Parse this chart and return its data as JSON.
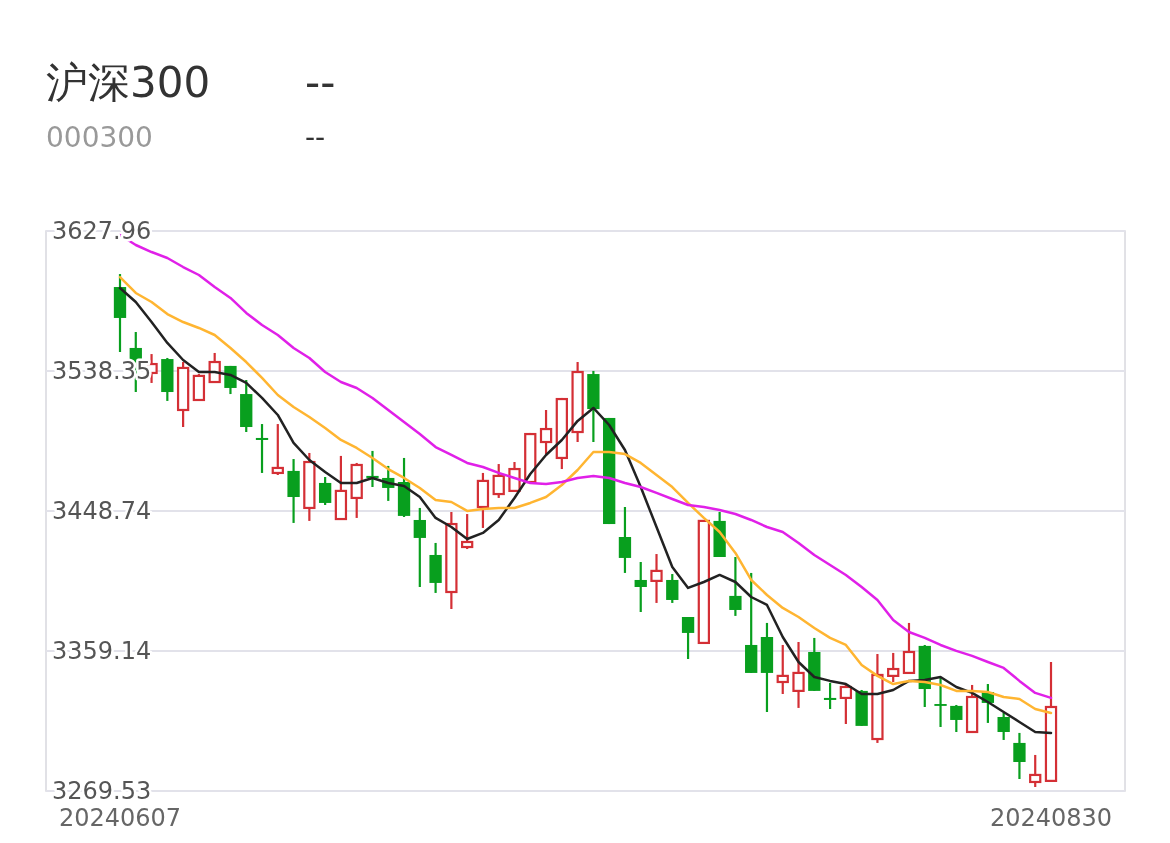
{
  "chart_data": {
    "type": "candlestick",
    "title": "沪深300",
    "subtitle": "000300",
    "annotations": [
      "--",
      "--"
    ],
    "categories": [
      "20240607",
      null,
      null,
      null,
      null,
      null,
      null,
      null,
      null,
      null,
      null,
      null,
      null,
      null,
      null,
      null,
      null,
      null,
      null,
      null,
      null,
      null,
      null,
      null,
      null,
      null,
      null,
      null,
      null,
      null,
      null,
      null,
      null,
      null,
      null,
      null,
      null,
      null,
      null,
      null,
      null,
      null,
      null,
      null,
      null,
      null,
      null,
      null,
      null,
      null,
      null,
      null,
      null,
      null,
      null,
      null,
      null,
      null,
      null,
      "20240830"
    ],
    "ylim": [
      3269.53,
      3627.96
    ],
    "yticks": [
      3269.53,
      3359.14,
      3448.74,
      3538.35,
      3627.96
    ],
    "grid": "y",
    "ohlc": [
      [
        3592.1,
        3600.4,
        3550.5,
        3572.3
      ],
      [
        3553.1,
        3563.3,
        3524.9,
        3541.6
      ],
      [
        3537.1,
        3549.2,
        3530.7,
        3542.8
      ],
      [
        3546.0,
        3546.7,
        3519.2,
        3524.9
      ],
      [
        3513.4,
        3544.1,
        3502.5,
        3540.3
      ],
      [
        3519.8,
        3536.4,
        3519.8,
        3535.2
      ],
      [
        3531.3,
        3549.9,
        3531.3,
        3544.1
      ],
      [
        3541.6,
        3541.6,
        3523.6,
        3527.5
      ],
      [
        3523.6,
        3532.6,
        3499.3,
        3502.5
      ],
      [
        3495.5,
        3504.4,
        3473.1,
        3494.2
      ],
      [
        3473.1,
        3504.4,
        3471.8,
        3476.3
      ],
      [
        3474.4,
        3482.0,
        3441.1,
        3457.7
      ],
      [
        3450.7,
        3485.9,
        3442.4,
        3480.1
      ],
      [
        3466.7,
        3470.5,
        3452.6,
        3453.9
      ],
      [
        3443.6,
        3484.0,
        3443.6,
        3461.6
      ],
      [
        3457.1,
        3479.5,
        3444.3,
        3478.2
      ],
      [
        3471.2,
        3487.2,
        3464.1,
        3469.9
      ],
      [
        3469.9,
        3477.6,
        3455.2,
        3463.5
      ],
      [
        3467.3,
        3482.7,
        3444.9,
        3445.6
      ],
      [
        3443.0,
        3450.7,
        3400.1,
        3431.5
      ],
      [
        3420.6,
        3428.3,
        3396.3,
        3402.7
      ],
      [
        3396.9,
        3448.1,
        3386.0,
        3440.4
      ],
      [
        3425.7,
        3446.8,
        3424.4,
        3428.9
      ],
      [
        3451.3,
        3473.1,
        3437.9,
        3468.0
      ],
      [
        3459.6,
        3478.8,
        3457.1,
        3471.2
      ],
      [
        3461.6,
        3480.1,
        3461.6,
        3475.6
      ],
      [
        3467.3,
        3498.7,
        3467.3,
        3498.0
      ],
      [
        3492.9,
        3513.4,
        3485.2,
        3501.2
      ],
      [
        3482.7,
        3521.1,
        3475.6,
        3520.4
      ],
      [
        3499.3,
        3544.1,
        3492.9,
        3537.7
      ],
      [
        3536.4,
        3538.4,
        3492.9,
        3514.0
      ],
      [
        3508.3,
        3508.3,
        3440.4,
        3440.4
      ],
      [
        3432.1,
        3451.3,
        3409.1,
        3418.7
      ],
      [
        3404.6,
        3416.1,
        3384.1,
        3400.1
      ],
      [
        3404.0,
        3421.2,
        3389.9,
        3410.4
      ],
      [
        3404.6,
        3408.4,
        3389.9,
        3391.8
      ],
      [
        3380.9,
        3380.9,
        3354.0,
        3370.7
      ],
      [
        3364.3,
        3443.0,
        3364.3,
        3442.4
      ],
      [
        3442.4,
        3448.1,
        3419.3,
        3419.3
      ],
      [
        3394.4,
        3419.3,
        3381.6,
        3385.4
      ],
      [
        3363.0,
        3409.1,
        3345.1,
        3345.1
      ],
      [
        3368.1,
        3377.1,
        3320.1,
        3345.1
      ],
      [
        3339.3,
        3363.0,
        3331.6,
        3343.2
      ],
      [
        3333.6,
        3364.9,
        3322.7,
        3345.1
      ],
      [
        3358.5,
        3367.5,
        3333.6,
        3333.6
      ],
      [
        3329.1,
        3338.7,
        3322.0,
        3327.8
      ],
      [
        3329.1,
        3337.4,
        3312.4,
        3336.1
      ],
      [
        3333.6,
        3334.2,
        3311.2,
        3311.2
      ],
      [
        3302.8,
        3357.2,
        3300.3,
        3343.8
      ],
      [
        3343.2,
        3357.9,
        3339.3,
        3347.6
      ],
      [
        3345.1,
        3377.1,
        3345.1,
        3358.5
      ],
      [
        3362.4,
        3363.0,
        3323.3,
        3334.8
      ],
      [
        3325.2,
        3341.9,
        3310.5,
        3324.0
      ],
      [
        3324.0,
        3324.6,
        3307.3,
        3315.0
      ],
      [
        3307.3,
        3337.4,
        3307.3,
        3329.7
      ],
      [
        3332.9,
        3338.0,
        3313.1,
        3325.9
      ],
      [
        3316.9,
        3319.5,
        3302.2,
        3307.3
      ],
      [
        3300.3,
        3306.7,
        3277.2,
        3288.1
      ],
      [
        3275.3,
        3292.6,
        3272.1,
        3279.8
      ],
      [
        3276.0,
        3352.1,
        3276.0,
        3323.3
      ]
    ],
    "colors": [
      "#089f1e",
      "#089f1e",
      "#d42f35",
      "#089f1e",
      "#d42f35",
      "#d42f35",
      "#d42f35",
      "#089f1e",
      "#089f1e",
      "#089f1e",
      "#d42f35",
      "#089f1e",
      "#d42f35",
      "#089f1e",
      "#d42f35",
      "#d42f35",
      "#089f1e",
      "#089f1e",
      "#089f1e",
      "#089f1e",
      "#089f1e",
      "#d42f35",
      "#d42f35",
      "#d42f35",
      "#d42f35",
      "#d42f35",
      "#d42f35",
      "#d42f35",
      "#d42f35",
      "#d42f35",
      "#089f1e",
      "#089f1e",
      "#089f1e",
      "#089f1e",
      "#d42f35",
      "#089f1e",
      "#089f1e",
      "#d42f35",
      "#089f1e",
      "#089f1e",
      "#089f1e",
      "#089f1e",
      "#d42f35",
      "#d42f35",
      "#089f1e",
      "#089f1e",
      "#d42f35",
      "#089f1e",
      "#d42f35",
      "#d42f35",
      "#d42f35",
      "#089f1e",
      "#089f1e",
      "#089f1e",
      "#d42f35",
      "#089f1e",
      "#089f1e",
      "#089f1e",
      "#d42f35",
      "#d42f35"
    ],
    "series": [
      {
        "type": "line",
        "color": "#222222",
        "values": [
          3591.5,
          3582.5,
          3569.7,
          3556.3,
          3545.4,
          3537.7,
          3537.7,
          3535.8,
          3530.7,
          3521.1,
          3510.2,
          3492.3,
          3481.4,
          3473.7,
          3466.7,
          3466.7,
          3469.9,
          3466.7,
          3464.8,
          3457.7,
          3444.3,
          3438.5,
          3430.8,
          3434.7,
          3443.0,
          3457.1,
          3472.4,
          3484.6,
          3494.2,
          3506.4,
          3514.7,
          3503.8,
          3487.8,
          3464.1,
          3438.5,
          3412.9,
          3399.5,
          3403.3,
          3407.8,
          3403.3,
          3393.7,
          3388.6,
          3368.1,
          3352.1,
          3342.5,
          3340.0,
          3338.0,
          3331.6,
          3331.6,
          3334.2,
          3340.0,
          3340.6,
          3342.5,
          3336.1,
          3332.3,
          3326.5,
          3320.1,
          3313.7,
          3307.3,
          3306.7
        ]
      },
      {
        "type": "line",
        "color": "#ffb531",
        "values": [
          3598.5,
          3588.3,
          3582.5,
          3574.8,
          3569.7,
          3565.9,
          3561.4,
          3553.1,
          3544.1,
          3533.9,
          3523.0,
          3515.3,
          3508.9,
          3501.9,
          3494.2,
          3489.1,
          3482.7,
          3475.6,
          3469.9,
          3463.5,
          3455.8,
          3454.5,
          3448.8,
          3450.0,
          3450.7,
          3450.7,
          3453.9,
          3457.7,
          3465.4,
          3475.0,
          3486.5,
          3486.5,
          3485.2,
          3479.5,
          3471.8,
          3464.1,
          3453.9,
          3444.3,
          3435.3,
          3421.9,
          3404.6,
          3395.0,
          3386.7,
          3380.9,
          3373.9,
          3367.5,
          3363.0,
          3350.2,
          3343.2,
          3338.0,
          3340.0,
          3339.3,
          3337.4,
          3333.6,
          3333.6,
          3332.9,
          3329.7,
          3328.4,
          3322.0,
          3319.5
        ]
      },
      {
        "type": "line",
        "color": "#e020e8",
        "values": [
          3625.4,
          3619.0,
          3614.5,
          3610.7,
          3604.9,
          3599.8,
          3592.1,
          3585.1,
          3575.5,
          3567.8,
          3561.4,
          3553.1,
          3546.7,
          3537.7,
          3531.3,
          3527.5,
          3521.1,
          3513.4,
          3505.7,
          3498.0,
          3489.7,
          3484.6,
          3479.5,
          3476.9,
          3473.1,
          3469.9,
          3466.7,
          3466.0,
          3467.3,
          3469.9,
          3471.2,
          3469.9,
          3466.7,
          3464.1,
          3460.3,
          3456.4,
          3452.6,
          3451.3,
          3449.4,
          3446.8,
          3443.0,
          3438.5,
          3435.3,
          3428.3,
          3420.6,
          3414.2,
          3407.8,
          3400.1,
          3391.8,
          3379.0,
          3371.3,
          3367.5,
          3363.0,
          3359.2,
          3356.0,
          3352.1,
          3348.3,
          3340.0,
          3332.3,
          3329.1
        ]
      }
    ]
  }
}
